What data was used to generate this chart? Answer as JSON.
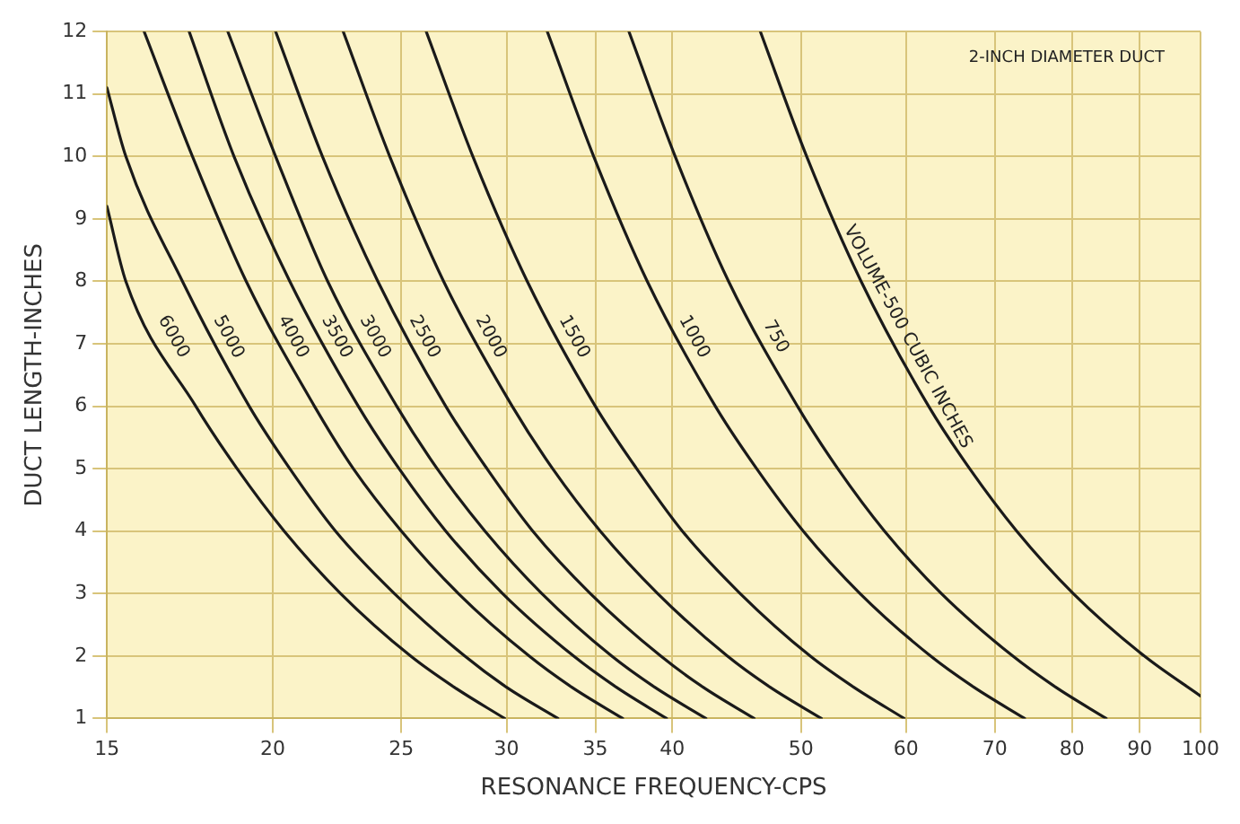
{
  "chart_data": {
    "type": "line",
    "xlabel": "RESONANCE FREQUENCY-CPS",
    "ylabel": "DUCT LENGTH-INCHES",
    "annotations": [
      "2-INCH DIAMETER DUCT"
    ],
    "log": "x",
    "grid": true,
    "legend": false,
    "marker": "none",
    "line_style": "solid",
    "xlim": [
      15,
      100
    ],
    "xticks": [
      15,
      20,
      25,
      30,
      35,
      40,
      50,
      60,
      70,
      80,
      90,
      100
    ],
    "ylim": [
      1,
      12
    ],
    "yticks": [
      1,
      2,
      3,
      4,
      5,
      6,
      7,
      8,
      9,
      10,
      11,
      12
    ],
    "series": [
      {
        "name": "6000",
        "color": "#1a1a1a",
        "x": [
          15,
          15.5,
          17.5,
          18.8,
          20.4,
          22.5,
          25.4,
          27.4,
          29.9
        ],
        "values": [
          9.2,
          8,
          6,
          5,
          4,
          3,
          2,
          1.5,
          1
        ]
      },
      {
        "name": "5000",
        "color": "#1a1a1a",
        "x": [
          15,
          15.5,
          17.1,
          19.2,
          20.6,
          22.3,
          24.7,
          27.9,
          30.0,
          32.8
        ],
        "values": [
          11.1,
          10,
          8,
          6,
          5,
          4,
          3,
          2,
          1.5,
          1
        ]
      },
      {
        "name": "4000",
        "color": "#1a1a1a",
        "x": [
          16.0,
          17.4,
          19.1,
          21.5,
          23.0,
          25.0,
          27.6,
          31.2,
          33.6,
          36.7
        ],
        "values": [
          12,
          10,
          8,
          6,
          5,
          4,
          3,
          2,
          1.5,
          1
        ]
      },
      {
        "name": "3500",
        "color": "#1a1a1a",
        "x": [
          17.3,
          18.7,
          20.6,
          23.2,
          24.9,
          27.0,
          29.8,
          33.7,
          36.3,
          39.6
        ],
        "values": [
          12,
          10,
          8,
          6,
          5,
          4,
          3,
          2,
          1.5,
          1
        ]
      },
      {
        "name": "3000",
        "color": "#1a1a1a",
        "x": [
          18.5,
          20.1,
          22.0,
          24.8,
          26.6,
          28.9,
          31.9,
          36.0,
          38.8,
          42.4
        ],
        "values": [
          12,
          10,
          8,
          6,
          5,
          4,
          3,
          2,
          1.5,
          1
        ]
      },
      {
        "name": "2500",
        "color": "#1a1a1a",
        "x": [
          20.1,
          21.8,
          24.0,
          27.0,
          29.0,
          31.4,
          34.7,
          39.2,
          42.2,
          46.1
        ],
        "values": [
          12,
          10,
          8,
          6,
          5,
          4,
          3,
          2,
          1.5,
          1
        ]
      },
      {
        "name": "2000",
        "color": "#1a1a1a",
        "x": [
          22.6,
          24.5,
          26.9,
          30.3,
          32.5,
          35.3,
          39.0,
          44.0,
          47.4,
          51.8
        ],
        "values": [
          12,
          10,
          8,
          6,
          5,
          4,
          3,
          2,
          1.5,
          1
        ]
      },
      {
        "name": "1500",
        "color": "#1a1a1a",
        "x": [
          26.1,
          28.3,
          31.1,
          35.0,
          37.6,
          40.7,
          45.0,
          50.8,
          54.8,
          59.8
        ],
        "values": [
          12,
          10,
          8,
          6,
          5,
          4,
          3,
          2,
          1.5,
          1
        ]
      },
      {
        "name": "1000",
        "color": "#1a1a1a",
        "x": [
          32.2,
          34.9,
          38.3,
          43.1,
          46.3,
          50.2,
          55.4,
          62.6,
          67.5,
          73.7
        ],
        "values": [
          12,
          10,
          8,
          6,
          5,
          4,
          3,
          2,
          1.5,
          1
        ]
      },
      {
        "name": "750",
        "color": "#1a1a1a",
        "x": [
          37.1,
          40.2,
          44.1,
          49.7,
          53.3,
          57.8,
          63.8,
          72.2,
          77.8,
          84.9
        ],
        "values": [
          12,
          10,
          8,
          6,
          5,
          4,
          3,
          2,
          1.5,
          1
        ]
      },
      {
        "name": "VOLUME-500 CUBIC INCHES",
        "color": "#1a1a1a",
        "x": [
          46.6,
          50.5,
          55.5,
          62.4,
          67.0,
          72.7,
          80.2,
          90.7,
          100
        ],
        "values": [
          12,
          10,
          8,
          6,
          5,
          4,
          3,
          2,
          1.36
        ]
      }
    ]
  }
}
